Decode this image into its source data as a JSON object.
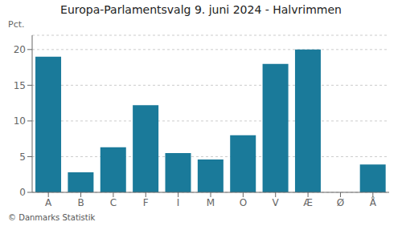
{
  "chart_data": {
    "type": "bar",
    "title": "Europa-Parlamentsvalg 9. juni 2024 - Halvrimmen",
    "categories": [
      "A",
      "B",
      "C",
      "F",
      "I",
      "M",
      "O",
      "V",
      "Æ",
      "Ø",
      "Å"
    ],
    "values": [
      19.0,
      2.8,
      6.3,
      12.2,
      5.5,
      4.6,
      8.0,
      18.0,
      20.0,
      0.0,
      3.9
    ],
    "color": "#1a7a9a",
    "ylabel": "Pct.",
    "ylim": [
      0,
      22
    ],
    "yticks": [
      0,
      5,
      10,
      15,
      20
    ],
    "grid": true,
    "footnote": "© Danmarks Statistik"
  }
}
